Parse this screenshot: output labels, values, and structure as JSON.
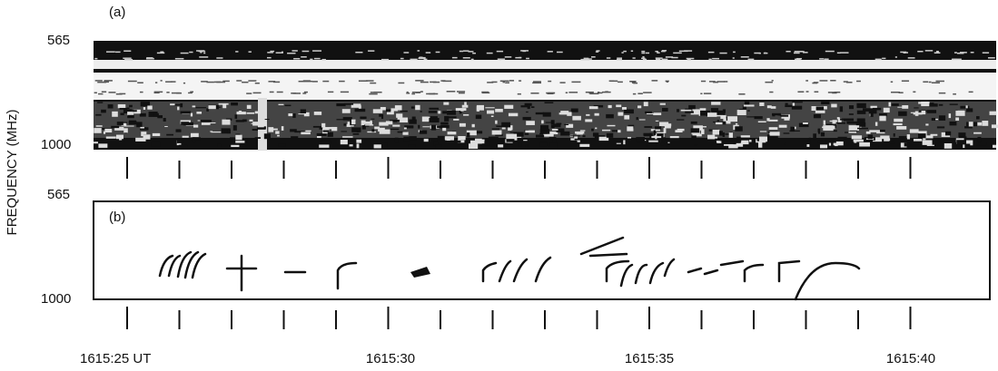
{
  "panels": [
    {
      "label": "(a)",
      "top_label": "565",
      "bottom_label": "1000"
    },
    {
      "label": "(b)",
      "top_label": "565",
      "bottom_label": "1000"
    }
  ],
  "y_axis_label": "FREQUENCY (MHz)",
  "time_labels": [
    "1615:25 UT",
    "1615:30",
    "1615:35",
    "1615:40"
  ]
}
